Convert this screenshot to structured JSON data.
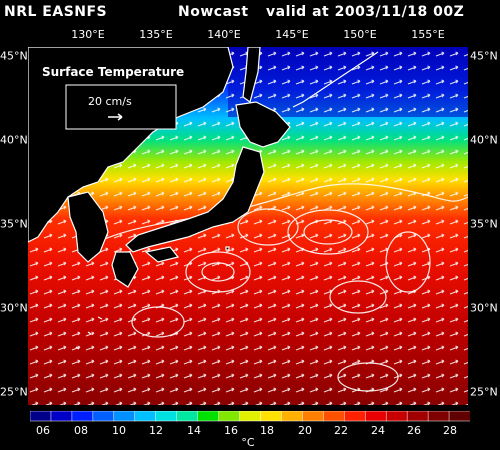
{
  "header": {
    "source": "NRL EASNFS",
    "product": "Nowcast",
    "valid": "valid at 2003/11/18 00Z"
  },
  "map": {
    "variable_label": "Surface Temperature",
    "vector_scale_label": "20 cm/s"
  },
  "lon_labels": [
    "130°E",
    "135°E",
    "140°E",
    "145°E",
    "150°E",
    "155°E"
  ],
  "lat_labels": [
    "45°N",
    "40°N",
    "35°N",
    "30°N",
    "25°N"
  ],
  "colorbar": {
    "ticks": [
      "06",
      "08",
      "10",
      "12",
      "14",
      "16",
      "18",
      "20",
      "22",
      "24",
      "26",
      "28"
    ],
    "unit": "°C",
    "colors": [
      "#00008b",
      "#0000c8",
      "#0020ff",
      "#0060ff",
      "#0090ff",
      "#00c0ff",
      "#00e0e0",
      "#00e8a0",
      "#00e000",
      "#80e800",
      "#e0f000",
      "#ffe000",
      "#ffb000",
      "#ff8000",
      "#ff5000",
      "#ff2000",
      "#e80000",
      "#c80000",
      "#a00000",
      "#800000",
      "#600000"
    ]
  },
  "colors": {
    "land": "#000000",
    "coast": "#ffffff",
    "vectors": "#ffffff"
  }
}
